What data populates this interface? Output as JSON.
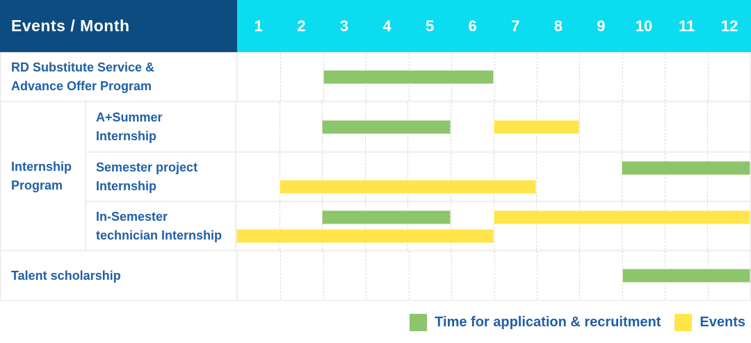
{
  "palette": {
    "navy": "#0C4C80",
    "cyan": "#0CDCEF",
    "green": "#8CC56B",
    "yellow": "#FFE549",
    "label_text_blue": "#1F5FA6",
    "grid_line": "#EDEDED"
  },
  "header": {
    "title": "Events / Month"
  },
  "chart_data": {
    "type": "bar",
    "subtype": "gantt-schedule",
    "months": [
      "1",
      "2",
      "3",
      "4",
      "5",
      "6",
      "7",
      "8",
      "9",
      "10",
      "11",
      "12"
    ],
    "x_range": [
      1,
      12
    ],
    "grid": "dashed-vertical-month-lines",
    "legend_position": "bottom-right",
    "legend": [
      {
        "kind": "application",
        "color_key": "green",
        "label": "Time for application & recruitment"
      },
      {
        "kind": "events",
        "color_key": "yellow",
        "label": "Events"
      }
    ],
    "groups": [
      {
        "label_lines": [
          "Internship",
          "Program"
        ]
      }
    ],
    "rows": [
      {
        "label_lines": [
          "RD Substitute Service &",
          "Advance Offer Program"
        ],
        "group": null,
        "tracks": 1,
        "bars": [
          {
            "kind": "application",
            "start": 3,
            "end": 6,
            "track": 0
          }
        ]
      },
      {
        "label_lines": [
          "A+Summer",
          "Internship"
        ],
        "group": "Internship Program",
        "tracks": 1,
        "bars": [
          {
            "kind": "application",
            "start": 3,
            "end": 5,
            "track": 0
          },
          {
            "kind": "events",
            "start": 7,
            "end": 8,
            "track": 0
          }
        ]
      },
      {
        "label_lines": [
          "Semester project",
          "Internship"
        ],
        "group": "Internship Program",
        "tracks": 2,
        "bars": [
          {
            "kind": "application",
            "start": 10,
            "end": 12,
            "track": 0
          },
          {
            "kind": "events",
            "start": 2,
            "end": 7,
            "track": 1
          }
        ]
      },
      {
        "label_lines": [
          "In-Semester",
          "technician Internship"
        ],
        "group": "Internship Program",
        "tracks": 2,
        "bars": [
          {
            "kind": "application",
            "start": 3,
            "end": 5,
            "track": 0
          },
          {
            "kind": "events",
            "start": 7,
            "end": 12,
            "track": 0
          },
          {
            "kind": "events",
            "start": 1,
            "end": 6,
            "track": 1
          }
        ]
      },
      {
        "label_lines": [
          "Talent scholarship"
        ],
        "group": null,
        "tracks": 1,
        "bars": [
          {
            "kind": "application",
            "start": 10,
            "end": 12,
            "track": 0
          }
        ]
      }
    ]
  }
}
